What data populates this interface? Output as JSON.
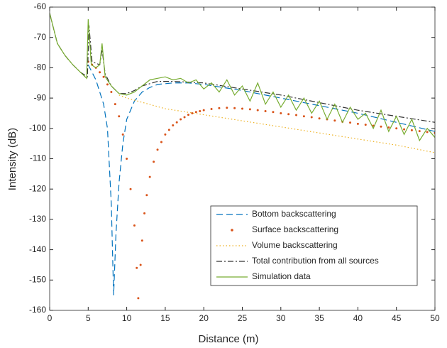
{
  "chart_data": {
    "type": "line",
    "xlabel": "Distance (m)",
    "ylabel": "Intensity (dB)",
    "xlim": [
      0,
      50
    ],
    "ylim": [
      -160,
      -60
    ],
    "xticks": [
      0,
      5,
      10,
      15,
      20,
      25,
      30,
      35,
      40,
      45,
      50
    ],
    "yticks": [
      -160,
      -150,
      -140,
      -130,
      -120,
      -110,
      -100,
      -90,
      -80,
      -70,
      -60
    ],
    "legend": "lower right",
    "series": [
      {
        "name": "Bottom backscattering",
        "color": "#0072bd",
        "style": "dashed",
        "x": [
          5,
          6,
          7,
          7.5,
          8,
          8.3,
          8.6,
          9,
          9.5,
          10,
          11,
          12,
          13,
          14,
          16,
          18,
          20,
          25,
          30,
          35,
          40,
          45,
          50
        ],
        "values": [
          -79,
          -84,
          -92,
          -100,
          -125,
          -155,
          -135,
          -118,
          -105,
          -97,
          -91,
          -88,
          -86.5,
          -85.5,
          -85,
          -85,
          -85.5,
          -87.5,
          -90,
          -92.5,
          -95,
          -98,
          -101
        ]
      },
      {
        "name": "Surface backscattering",
        "color": "#d95319",
        "style": "dots",
        "x": [
          5,
          5.5,
          6,
          6.5,
          7,
          7.5,
          8,
          8.5,
          9,
          9.5,
          10,
          10.5,
          11,
          11.3,
          11.5,
          11.8,
          12,
          12.3,
          12.6,
          13,
          13.5,
          14,
          14.5,
          15,
          15.5,
          16,
          16.5,
          17,
          17.5,
          18,
          18.5,
          19,
          19.5,
          20,
          21,
          22,
          23,
          24,
          25,
          26,
          27,
          28,
          29,
          30,
          31,
          32,
          33,
          34,
          35,
          36,
          37,
          38,
          39,
          40,
          41,
          42,
          43,
          44,
          45,
          46,
          47,
          48,
          49,
          50
        ],
        "values": [
          -78,
          -79,
          -80,
          -81.5,
          -83,
          -85.5,
          -88,
          -92,
          -96,
          -102,
          -110,
          -120,
          -132,
          -146,
          -156,
          -145,
          -137,
          -128,
          -122,
          -116,
          -111,
          -107,
          -104.5,
          -102,
          -100.5,
          -99,
          -98,
          -97,
          -96.3,
          -95.5,
          -95,
          -94.6,
          -94.3,
          -94,
          -93.6,
          -93.3,
          -93.2,
          -93.3,
          -93.5,
          -93.7,
          -94,
          -94.3,
          -94.6,
          -95,
          -95.3,
          -95.6,
          -96,
          -96.3,
          -96.7,
          -97,
          -97.4,
          -97.8,
          -98.1,
          -98.5,
          -98.8,
          -99.1,
          -99.4,
          -99.7,
          -100,
          -100.3,
          -100.6,
          -100.9,
          -101.2,
          -101.5
        ]
      },
      {
        "name": "Volume backscattering",
        "color": "#edb120",
        "style": "dotted",
        "x": [
          9,
          10,
          15,
          20,
          25,
          30,
          35,
          40,
          45,
          50
        ],
        "values": [
          -89,
          -90,
          -93.5,
          -95.5,
          -97.5,
          -99.5,
          -101.5,
          -103.5,
          -105.5,
          -108
        ]
      },
      {
        "name": "Total contribution from all sources",
        "color": "#333333",
        "style": "dashdot",
        "x": [
          0,
          1,
          2,
          3,
          4,
          4.9,
          5.1,
          5.5,
          6.5,
          6.8,
          7.2,
          8,
          9,
          10,
          11,
          12,
          14,
          16,
          20,
          25,
          30,
          35,
          40,
          45,
          50
        ],
        "values": [
          -62,
          -72,
          -76,
          -79,
          -81.5,
          -83,
          -66,
          -78,
          -79,
          -74,
          -82,
          -86,
          -88.5,
          -88.5,
          -87.5,
          -86,
          -84.5,
          -84.5,
          -85,
          -87,
          -89,
          -91.5,
          -94,
          -96,
          -98
        ]
      },
      {
        "name": "Simulation data",
        "color": "#77ac30",
        "style": "solid",
        "x": [
          0,
          1,
          2,
          3,
          4,
          4.8,
          5,
          5.4,
          6,
          6.5,
          6.8,
          7.2,
          8,
          9,
          10,
          11,
          12,
          13,
          14,
          15,
          16,
          17,
          18,
          19,
          20,
          21,
          22,
          23,
          24,
          25,
          26,
          27,
          28,
          29,
          30,
          31,
          32,
          33,
          34,
          35,
          36,
          37,
          38,
          39,
          40,
          41,
          42,
          43,
          44,
          45,
          46,
          47,
          48,
          49,
          50
        ],
        "values": [
          -62,
          -72,
          -76,
          -79,
          -81.5,
          -83.5,
          -64,
          -79,
          -80,
          -79,
          -72,
          -83,
          -86,
          -88.5,
          -89,
          -88,
          -86,
          -84,
          -83.5,
          -83,
          -84,
          -83.5,
          -85,
          -84,
          -87,
          -85,
          -88,
          -84,
          -89,
          -86,
          -91,
          -85,
          -92,
          -88,
          -93,
          -89,
          -94,
          -90,
          -95,
          -91,
          -97,
          -92,
          -98,
          -93,
          -97,
          -95,
          -100,
          -94,
          -101,
          -96,
          -102,
          -97,
          -104,
          -100,
          -103
        ]
      }
    ]
  }
}
